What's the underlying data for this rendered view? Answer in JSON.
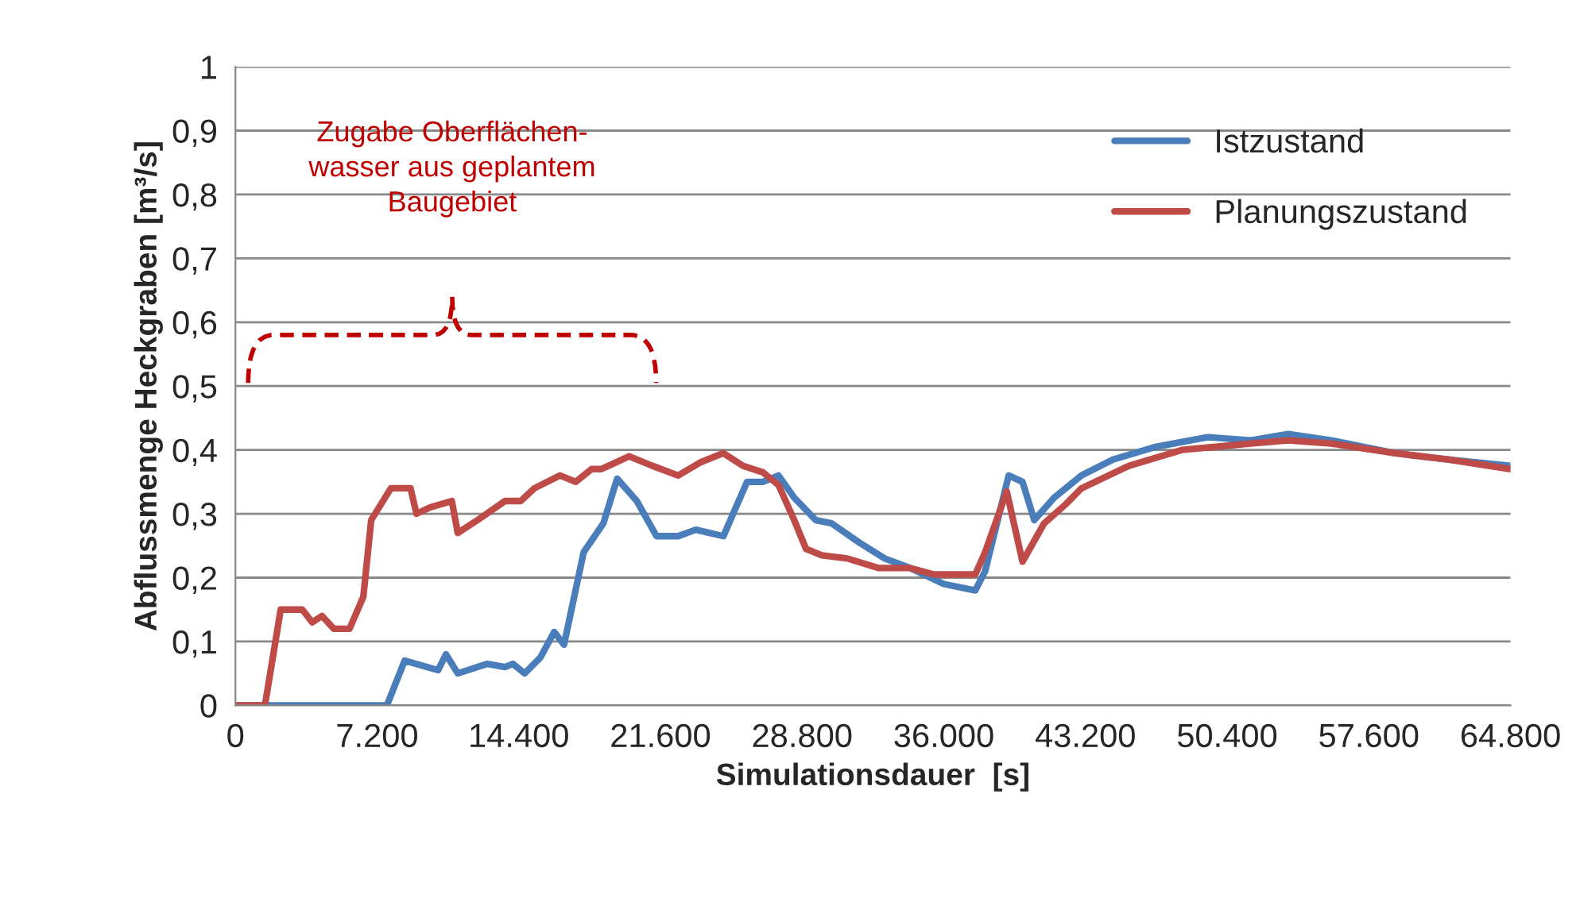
{
  "chart_data": {
    "type": "line",
    "xlabel": "Simulationsdauer  [s]",
    "ylabel": "Abflussmenge Heckgraben [m³/s]",
    "annotations": [
      "Zugabe Oberflächen-\nwasser aus geplantem\nBaugebiet"
    ],
    "series": [
      {
        "name": "Istzustand",
        "color": "#4a7ebb",
        "x": [
          0,
          6900,
          7700,
          8600,
          10300,
          10700,
          11300,
          12800,
          13700,
          14100,
          14700,
          15500,
          16200,
          16700,
          17700,
          18700,
          19400,
          20400,
          21400,
          22500,
          23400,
          24800,
          26000,
          26800,
          27600,
          28400,
          29500,
          30300,
          31700,
          33000,
          34300,
          36000,
          37600,
          38100,
          39300,
          40000,
          40600,
          41600,
          43000,
          44600,
          46800,
          49400,
          51600,
          53500,
          55700,
          58900,
          61600,
          64800
        ],
        "values": [
          0,
          0,
          0,
          0.07,
          0.055,
          0.08,
          0.05,
          0.065,
          0.06,
          0.065,
          0.05,
          0.075,
          0.115,
          0.095,
          0.24,
          0.285,
          0.355,
          0.32,
          0.265,
          0.265,
          0.275,
          0.265,
          0.35,
          0.35,
          0.36,
          0.325,
          0.29,
          0.285,
          0.255,
          0.23,
          0.215,
          0.19,
          0.18,
          0.21,
          0.36,
          0.35,
          0.29,
          0.325,
          0.36,
          0.385,
          0.405,
          0.42,
          0.415,
          0.425,
          0.415,
          0.395,
          0.385,
          0.375
        ]
      },
      {
        "name": "Planungszustand",
        "color": "#be4b48",
        "x": [
          0,
          1500,
          2300,
          3400,
          3900,
          4400,
          5000,
          5800,
          6500,
          6900,
          7900,
          8900,
          9200,
          9900,
          11000,
          11300,
          12300,
          13700,
          14500,
          15200,
          16500,
          17300,
          18100,
          18600,
          20000,
          21200,
          22500,
          23600,
          24800,
          25800,
          26800,
          27600,
          28400,
          29000,
          29800,
          31100,
          32700,
          34300,
          35500,
          37600,
          38100,
          39200,
          40000,
          41100,
          42200,
          43000,
          45400,
          48100,
          51600,
          53500,
          55700,
          58900,
          61600,
          64800
        ],
        "values": [
          0,
          0,
          0.15,
          0.15,
          0.13,
          0.14,
          0.12,
          0.12,
          0.17,
          0.29,
          0.34,
          0.34,
          0.3,
          0.31,
          0.32,
          0.27,
          0.29,
          0.32,
          0.32,
          0.34,
          0.36,
          0.35,
          0.37,
          0.37,
          0.39,
          0.375,
          0.36,
          0.38,
          0.395,
          0.375,
          0.365,
          0.345,
          0.29,
          0.245,
          0.235,
          0.23,
          0.215,
          0.215,
          0.205,
          0.205,
          0.24,
          0.335,
          0.225,
          0.285,
          0.315,
          0.34,
          0.375,
          0.4,
          0.41,
          0.415,
          0.41,
          0.395,
          0.385,
          0.37
        ]
      }
    ],
    "xlim": [
      0,
      64800
    ],
    "xticks": [
      0,
      {
        "value": 7200,
        "label": "7.200"
      },
      {
        "value": 14400,
        "label": "14.400"
      },
      {
        "value": 21600,
        "label": "21.600"
      },
      {
        "value": 28800,
        "label": "28.800"
      },
      {
        "value": 36000,
        "label": "36.000"
      },
      {
        "value": 43200,
        "label": "43.200"
      },
      {
        "value": 50400,
        "label": "50.400"
      },
      {
        "value": 57600,
        "label": "57.600"
      },
      {
        "value": 64800,
        "label": "64.800"
      }
    ],
    "ylim": [
      0,
      1
    ],
    "yticks": [
      0,
      {
        "value": 0.1,
        "label": "0,1"
      },
      {
        "value": 0.2,
        "label": "0,2"
      },
      {
        "value": 0.3,
        "label": "0,3"
      },
      {
        "value": 0.4,
        "label": "0,4"
      },
      {
        "value": 0.5,
        "label": "0,5"
      },
      {
        "value": 0.6,
        "label": "0,6"
      },
      {
        "value": 0.7,
        "label": "0,7"
      },
      {
        "value": 0.8,
        "label": "0,8"
      },
      {
        "value": 0.9,
        "label": "0,9"
      },
      1
    ],
    "grid": "y",
    "legend": "top right",
    "marker": "none",
    "line_style": "solid"
  }
}
